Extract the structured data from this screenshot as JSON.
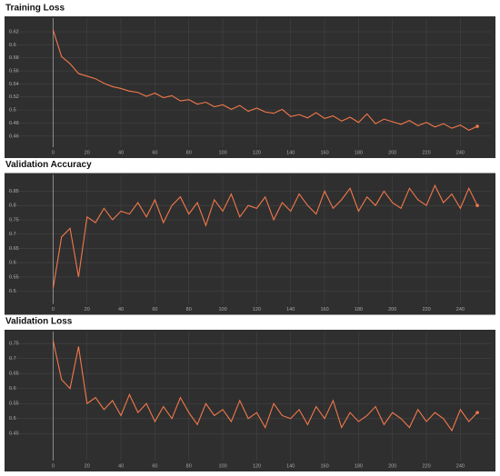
{
  "chart_data": [
    {
      "type": "line",
      "title": "Training Loss",
      "color": "#f2784b",
      "grid": true,
      "x": [
        0,
        5,
        10,
        15,
        20,
        25,
        30,
        35,
        40,
        45,
        50,
        55,
        60,
        65,
        70,
        75,
        80,
        85,
        90,
        95,
        100,
        105,
        110,
        115,
        120,
        125,
        130,
        135,
        140,
        145,
        150,
        155,
        160,
        165,
        170,
        175,
        180,
        185,
        190,
        195,
        200,
        205,
        210,
        215,
        220,
        225,
        230,
        235,
        240,
        245,
        250
      ],
      "values": [
        0.623,
        0.582,
        0.571,
        0.556,
        0.552,
        0.548,
        0.541,
        0.536,
        0.533,
        0.529,
        0.527,
        0.521,
        0.526,
        0.519,
        0.522,
        0.514,
        0.516,
        0.509,
        0.512,
        0.505,
        0.508,
        0.501,
        0.507,
        0.498,
        0.503,
        0.497,
        0.495,
        0.501,
        0.49,
        0.493,
        0.488,
        0.496,
        0.487,
        0.491,
        0.483,
        0.489,
        0.481,
        0.494,
        0.479,
        0.486,
        0.482,
        0.478,
        0.484,
        0.476,
        0.481,
        0.474,
        0.479,
        0.472,
        0.477,
        0.469,
        0.475
      ],
      "xlim": [
        -27,
        258
      ],
      "xticks": [
        0,
        20,
        40,
        60,
        80,
        100,
        120,
        140,
        160,
        180,
        200,
        220,
        240
      ],
      "ylim": [
        0.443,
        0.641
      ],
      "yticks": [
        0.46,
        0.48,
        0.5,
        0.52,
        0.54,
        0.56,
        0.58,
        0.6,
        0.62
      ]
    },
    {
      "type": "line",
      "title": "Validation Accuracy",
      "color": "#f2784b",
      "grid": true,
      "x": [
        0,
        5,
        10,
        15,
        20,
        25,
        30,
        35,
        40,
        45,
        50,
        55,
        60,
        65,
        70,
        75,
        80,
        85,
        90,
        95,
        100,
        105,
        110,
        115,
        120,
        125,
        130,
        135,
        140,
        145,
        150,
        155,
        160,
        165,
        170,
        175,
        180,
        185,
        190,
        195,
        200,
        205,
        210,
        215,
        220,
        225,
        230,
        235,
        240,
        245,
        250
      ],
      "values": [
        0.51,
        0.69,
        0.72,
        0.55,
        0.76,
        0.74,
        0.79,
        0.75,
        0.78,
        0.77,
        0.81,
        0.76,
        0.82,
        0.74,
        0.8,
        0.83,
        0.77,
        0.81,
        0.73,
        0.82,
        0.78,
        0.84,
        0.76,
        0.8,
        0.79,
        0.83,
        0.75,
        0.81,
        0.78,
        0.84,
        0.8,
        0.77,
        0.85,
        0.79,
        0.82,
        0.86,
        0.78,
        0.83,
        0.8,
        0.85,
        0.81,
        0.79,
        0.86,
        0.82,
        0.8,
        0.87,
        0.81,
        0.84,
        0.79,
        0.86,
        0.8
      ],
      "xlim": [
        -27,
        258
      ],
      "xticks": [
        0,
        20,
        40,
        60,
        80,
        100,
        120,
        140,
        160,
        180,
        200,
        220,
        240
      ],
      "ylim": [
        0.456,
        0.907
      ],
      "yticks": [
        0.5,
        0.55,
        0.6,
        0.65,
        0.7,
        0.75,
        0.8,
        0.85
      ]
    },
    {
      "type": "line",
      "title": "Validation Loss",
      "color": "#f2784b",
      "grid": true,
      "x": [
        0,
        5,
        10,
        15,
        20,
        25,
        30,
        35,
        40,
        45,
        50,
        55,
        60,
        65,
        70,
        75,
        80,
        85,
        90,
        95,
        100,
        105,
        110,
        115,
        120,
        125,
        130,
        135,
        140,
        145,
        150,
        155,
        160,
        165,
        170,
        175,
        180,
        185,
        190,
        195,
        200,
        205,
        210,
        215,
        220,
        225,
        230,
        235,
        240,
        245,
        250
      ],
      "values": [
        0.76,
        0.63,
        0.6,
        0.74,
        0.55,
        0.57,
        0.53,
        0.56,
        0.51,
        0.58,
        0.52,
        0.55,
        0.49,
        0.54,
        0.5,
        0.57,
        0.52,
        0.48,
        0.55,
        0.51,
        0.53,
        0.49,
        0.56,
        0.5,
        0.52,
        0.47,
        0.55,
        0.51,
        0.5,
        0.53,
        0.48,
        0.54,
        0.5,
        0.56,
        0.47,
        0.52,
        0.49,
        0.51,
        0.54,
        0.48,
        0.52,
        0.5,
        0.47,
        0.53,
        0.49,
        0.52,
        0.5,
        0.46,
        0.53,
        0.49,
        0.52
      ],
      "xlim": [
        -27,
        258
      ],
      "xticks": [
        0,
        20,
        40,
        60,
        80,
        100,
        120,
        140,
        160,
        180,
        200,
        220,
        240
      ],
      "ylim": [
        0.36,
        0.79
      ],
      "yticks": [
        0.45,
        0.5,
        0.55,
        0.6,
        0.65,
        0.7,
        0.75
      ]
    }
  ]
}
